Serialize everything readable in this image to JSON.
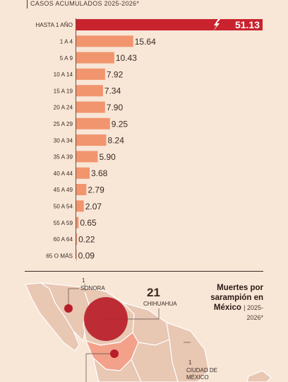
{
  "subtitle": "CASOS ACUMULADOS 2025-2026*",
  "chart_data": {
    "type": "bar",
    "orientation": "horizontal",
    "title": "",
    "subtitle": "CASOS ACUMULADOS 2025-2026*",
    "categories": [
      "HASTA 1 AÑO",
      "1 A 4",
      "5 A 9",
      "10 A 14",
      "15 A 19",
      "20 A 24",
      "25 A 29",
      "30 A 34",
      "35 A 39",
      "40 A 44",
      "45 A 49",
      "50 A 54",
      "55 A 59",
      "60 A 64",
      "65 O MÁS"
    ],
    "values": [
      51.13,
      15.64,
      10.43,
      7.92,
      7.34,
      7.9,
      9.25,
      8.24,
      5.9,
      3.68,
      2.79,
      2.07,
      0.65,
      0.22,
      0.09
    ],
    "value_labels": [
      "51.13",
      "15.64",
      "10.43",
      "7.92",
      "7.34",
      "7.90",
      "9.25",
      "8.24",
      "5.90",
      "3.68",
      "2.79",
      "2.07",
      "0.65",
      "0.22",
      "0.09"
    ],
    "xlim": [
      0,
      51.13
    ],
    "grid": false,
    "colors": {
      "highlight": "#c9232e",
      "bar": "#f1956e",
      "text": "#3a2a22",
      "highlight_text": "#ffffff"
    }
  },
  "map": {
    "sonora": {
      "count": "1",
      "name": "SONORA"
    },
    "chihuahua": {
      "count": "21",
      "name": "CHIHUAHUA"
    },
    "cdmx": {
      "count": "1",
      "name": "CIUDAD DE MÉXICO"
    },
    "colors": {
      "land": "#e8c7b3",
      "border": "#ffffff",
      "highlight_state": "#f3a18a",
      "bubble": "#b81d2a"
    }
  },
  "deaths": {
    "title": "Muertes por sarampión en México",
    "sub": "2025-2026*"
  }
}
